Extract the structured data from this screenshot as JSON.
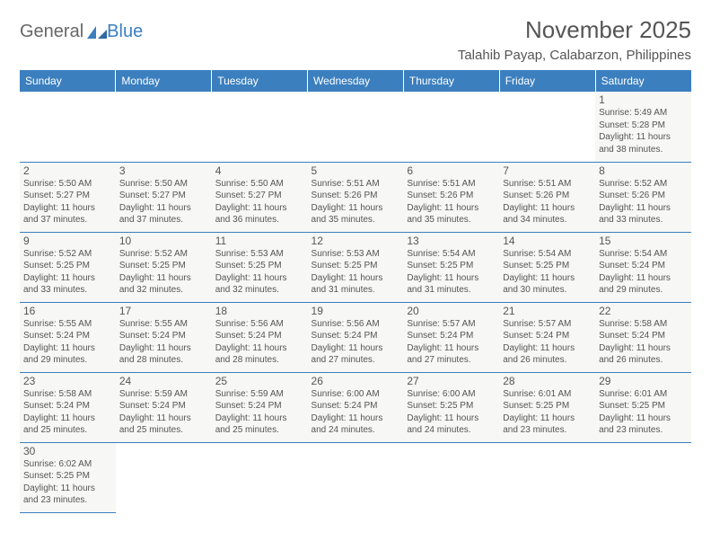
{
  "logo": {
    "text1": "General",
    "text2": "Blue"
  },
  "title": "November 2025",
  "location": "Talahib Payap, Calabarzon, Philippines",
  "colors": {
    "header_bg": "#3b7fbf",
    "header_fg": "#ffffff",
    "cell_bg": "#f7f7f5",
    "border": "#3b7fbf",
    "text": "#555555"
  },
  "weekdays": [
    "Sunday",
    "Monday",
    "Tuesday",
    "Wednesday",
    "Thursday",
    "Friday",
    "Saturday"
  ],
  "weeks": [
    [
      null,
      null,
      null,
      null,
      null,
      null,
      {
        "d": "1",
        "sr": "5:49 AM",
        "ss": "5:28 PM",
        "dl": "11 hours and 38 minutes."
      }
    ],
    [
      {
        "d": "2",
        "sr": "5:50 AM",
        "ss": "5:27 PM",
        "dl": "11 hours and 37 minutes."
      },
      {
        "d": "3",
        "sr": "5:50 AM",
        "ss": "5:27 PM",
        "dl": "11 hours and 37 minutes."
      },
      {
        "d": "4",
        "sr": "5:50 AM",
        "ss": "5:27 PM",
        "dl": "11 hours and 36 minutes."
      },
      {
        "d": "5",
        "sr": "5:51 AM",
        "ss": "5:26 PM",
        "dl": "11 hours and 35 minutes."
      },
      {
        "d": "6",
        "sr": "5:51 AM",
        "ss": "5:26 PM",
        "dl": "11 hours and 35 minutes."
      },
      {
        "d": "7",
        "sr": "5:51 AM",
        "ss": "5:26 PM",
        "dl": "11 hours and 34 minutes."
      },
      {
        "d": "8",
        "sr": "5:52 AM",
        "ss": "5:26 PM",
        "dl": "11 hours and 33 minutes."
      }
    ],
    [
      {
        "d": "9",
        "sr": "5:52 AM",
        "ss": "5:25 PM",
        "dl": "11 hours and 33 minutes."
      },
      {
        "d": "10",
        "sr": "5:52 AM",
        "ss": "5:25 PM",
        "dl": "11 hours and 32 minutes."
      },
      {
        "d": "11",
        "sr": "5:53 AM",
        "ss": "5:25 PM",
        "dl": "11 hours and 32 minutes."
      },
      {
        "d": "12",
        "sr": "5:53 AM",
        "ss": "5:25 PM",
        "dl": "11 hours and 31 minutes."
      },
      {
        "d": "13",
        "sr": "5:54 AM",
        "ss": "5:25 PM",
        "dl": "11 hours and 31 minutes."
      },
      {
        "d": "14",
        "sr": "5:54 AM",
        "ss": "5:25 PM",
        "dl": "11 hours and 30 minutes."
      },
      {
        "d": "15",
        "sr": "5:54 AM",
        "ss": "5:24 PM",
        "dl": "11 hours and 29 minutes."
      }
    ],
    [
      {
        "d": "16",
        "sr": "5:55 AM",
        "ss": "5:24 PM",
        "dl": "11 hours and 29 minutes."
      },
      {
        "d": "17",
        "sr": "5:55 AM",
        "ss": "5:24 PM",
        "dl": "11 hours and 28 minutes."
      },
      {
        "d": "18",
        "sr": "5:56 AM",
        "ss": "5:24 PM",
        "dl": "11 hours and 28 minutes."
      },
      {
        "d": "19",
        "sr": "5:56 AM",
        "ss": "5:24 PM",
        "dl": "11 hours and 27 minutes."
      },
      {
        "d": "20",
        "sr": "5:57 AM",
        "ss": "5:24 PM",
        "dl": "11 hours and 27 minutes."
      },
      {
        "d": "21",
        "sr": "5:57 AM",
        "ss": "5:24 PM",
        "dl": "11 hours and 26 minutes."
      },
      {
        "d": "22",
        "sr": "5:58 AM",
        "ss": "5:24 PM",
        "dl": "11 hours and 26 minutes."
      }
    ],
    [
      {
        "d": "23",
        "sr": "5:58 AM",
        "ss": "5:24 PM",
        "dl": "11 hours and 25 minutes."
      },
      {
        "d": "24",
        "sr": "5:59 AM",
        "ss": "5:24 PM",
        "dl": "11 hours and 25 minutes."
      },
      {
        "d": "25",
        "sr": "5:59 AM",
        "ss": "5:24 PM",
        "dl": "11 hours and 25 minutes."
      },
      {
        "d": "26",
        "sr": "6:00 AM",
        "ss": "5:24 PM",
        "dl": "11 hours and 24 minutes."
      },
      {
        "d": "27",
        "sr": "6:00 AM",
        "ss": "5:25 PM",
        "dl": "11 hours and 24 minutes."
      },
      {
        "d": "28",
        "sr": "6:01 AM",
        "ss": "5:25 PM",
        "dl": "11 hours and 23 minutes."
      },
      {
        "d": "29",
        "sr": "6:01 AM",
        "ss": "5:25 PM",
        "dl": "11 hours and 23 minutes."
      }
    ],
    [
      {
        "d": "30",
        "sr": "6:02 AM",
        "ss": "5:25 PM",
        "dl": "11 hours and 23 minutes."
      },
      null,
      null,
      null,
      null,
      null,
      null
    ]
  ],
  "labels": {
    "sunrise": "Sunrise: ",
    "sunset": "Sunset: ",
    "daylight": "Daylight: "
  }
}
